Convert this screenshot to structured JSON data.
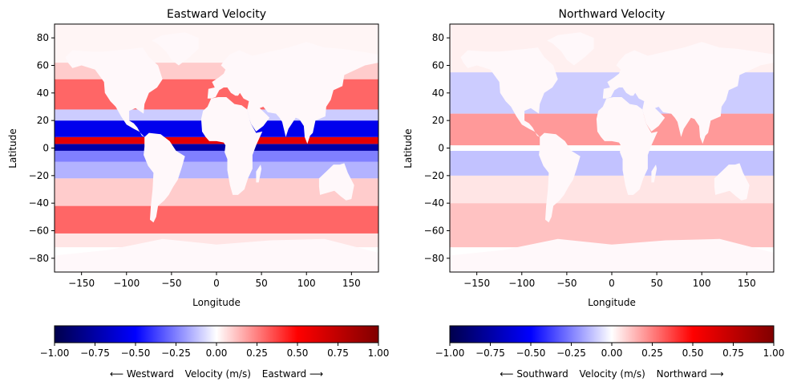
{
  "chart_data": [
    {
      "type": "heatmap",
      "title": "Eastward Velocity",
      "xlabel": "Longitude",
      "ylabel": "Latitude",
      "xlim": [
        -180,
        180
      ],
      "ylim": [
        -90,
        90
      ],
      "xticks": [
        -150,
        -100,
        -50,
        0,
        50,
        100,
        150
      ],
      "yticks": [
        -80,
        -60,
        -40,
        -20,
        0,
        20,
        40,
        60,
        80
      ],
      "xtick_labels": [
        "−150",
        "−100",
        "−50",
        "0",
        "50",
        "100",
        "150"
      ],
      "ytick_labels": [
        "−80",
        "−60",
        "−40",
        "−20",
        "0",
        "20",
        "40",
        "60",
        "80"
      ],
      "colormap": "seismic",
      "value_range": [
        -1.0,
        1.0
      ],
      "colorbar_ticks": [
        -1.0,
        -0.75,
        -0.5,
        -0.25,
        0.0,
        0.25,
        0.5,
        0.75,
        1.0
      ],
      "colorbar_tick_labels": [
        "−1.00",
        "−0.75",
        "−0.50",
        "−0.25",
        "0.00",
        "0.25",
        "0.50",
        "0.75",
        "1.00"
      ],
      "colorbar_label": {
        "left": "⟵  Westward",
        "middle": "Velocity (m/s)",
        "right": "Eastward  ⟶"
      },
      "zonal_bands": [
        {
          "lat": [
            -90,
            -72
          ],
          "value": 0.0
        },
        {
          "lat": [
            -72,
            -62
          ],
          "value": 0.05
        },
        {
          "lat": [
            -62,
            -42
          ],
          "value": 0.3
        },
        {
          "lat": [
            -42,
            -22
          ],
          "value": 0.1
        },
        {
          "lat": [
            -22,
            -10
          ],
          "value": -0.15
        },
        {
          "lat": [
            -10,
            -2
          ],
          "value": -0.25
        },
        {
          "lat": [
            -2,
            3
          ],
          "value": -0.75
        },
        {
          "lat": [
            3,
            8
          ],
          "value": 0.6
        },
        {
          "lat": [
            8,
            20
          ],
          "value": -0.55
        },
        {
          "lat": [
            20,
            28
          ],
          "value": -0.1
        },
        {
          "lat": [
            28,
            50
          ],
          "value": 0.3
        },
        {
          "lat": [
            50,
            62
          ],
          "value": 0.1
        },
        {
          "lat": [
            62,
            90
          ],
          "value": 0.02
        }
      ]
    },
    {
      "type": "heatmap",
      "title": "Northward Velocity",
      "xlabel": "Longitude",
      "ylabel": "Latitude",
      "xlim": [
        -180,
        180
      ],
      "ylim": [
        -90,
        90
      ],
      "xticks": [
        -150,
        -100,
        -50,
        0,
        50,
        100,
        150
      ],
      "yticks": [
        -80,
        -60,
        -40,
        -20,
        0,
        20,
        40,
        60,
        80
      ],
      "xtick_labels": [
        "−150",
        "−100",
        "−50",
        "0",
        "50",
        "100",
        "150"
      ],
      "ytick_labels": [
        "−80",
        "−60",
        "−40",
        "−20",
        "0",
        "20",
        "40",
        "60",
        "80"
      ],
      "colormap": "seismic",
      "value_range": [
        -1.0,
        1.0
      ],
      "colorbar_ticks": [
        -1.0,
        -0.75,
        -0.5,
        -0.25,
        0.0,
        0.25,
        0.5,
        0.75,
        1.0
      ],
      "colorbar_tick_labels": [
        "−1.00",
        "−0.75",
        "−0.50",
        "−0.25",
        "0.00",
        "0.25",
        "0.50",
        "0.75",
        "1.00"
      ],
      "colorbar_label": {
        "left": "⟵  Southward",
        "middle": "Velocity (m/s)",
        "right": "Northward  ⟶"
      },
      "zonal_bands": [
        {
          "lat": [
            -90,
            -72
          ],
          "value": 0.0
        },
        {
          "lat": [
            -72,
            -40
          ],
          "value": 0.12
        },
        {
          "lat": [
            -40,
            -20
          ],
          "value": 0.05
        },
        {
          "lat": [
            -20,
            -2
          ],
          "value": -0.12
        },
        {
          "lat": [
            -2,
            2
          ],
          "value": 0.0
        },
        {
          "lat": [
            2,
            25
          ],
          "value": 0.2
        },
        {
          "lat": [
            25,
            55
          ],
          "value": -0.1
        },
        {
          "lat": [
            55,
            90
          ],
          "value": 0.03
        }
      ]
    }
  ],
  "land": [
    {
      "name": "North America",
      "points": [
        [
          -168,
          66
        ],
        [
          -160,
          71
        ],
        [
          -140,
          70
        ],
        [
          -125,
          70
        ],
        [
          -95,
          72
        ],
        [
          -82,
          73
        ],
        [
          -75,
          66
        ],
        [
          -65,
          60
        ],
        [
          -60,
          50
        ],
        [
          -66,
          44
        ],
        [
          -75,
          40
        ],
        [
          -80,
          32
        ],
        [
          -81,
          25
        ],
        [
          -90,
          29
        ],
        [
          -97,
          27
        ],
        [
          -97,
          20
        ],
        [
          -92,
          18
        ],
        [
          -88,
          15
        ],
        [
          -83,
          9
        ],
        [
          -80,
          8
        ],
        [
          -86,
          12
        ],
        [
          -92,
          14
        ],
        [
          -100,
          17
        ],
        [
          -106,
          23
        ],
        [
          -112,
          30
        ],
        [
          -118,
          34
        ],
        [
          -124,
          40
        ],
        [
          -125,
          48
        ],
        [
          -135,
          57
        ],
        [
          -150,
          60
        ],
        [
          -160,
          58
        ],
        [
          -165,
          62
        ]
      ]
    },
    {
      "name": "Greenland",
      "points": [
        [
          -72,
          78
        ],
        [
          -60,
          82
        ],
        [
          -35,
          84
        ],
        [
          -20,
          80
        ],
        [
          -20,
          72
        ],
        [
          -30,
          66
        ],
        [
          -42,
          60
        ],
        [
          -50,
          64
        ],
        [
          -56,
          70
        ],
        [
          -66,
          76
        ]
      ]
    },
    {
      "name": "South America",
      "points": [
        [
          -80,
          8
        ],
        [
          -75,
          11
        ],
        [
          -62,
          10
        ],
        [
          -52,
          5
        ],
        [
          -45,
          -2
        ],
        [
          -35,
          -6
        ],
        [
          -39,
          -15
        ],
        [
          -43,
          -23
        ],
        [
          -48,
          -28
        ],
        [
          -53,
          -34
        ],
        [
          -58,
          -38
        ],
        [
          -65,
          -42
        ],
        [
          -67,
          -50
        ],
        [
          -70,
          -54
        ],
        [
          -74,
          -52
        ],
        [
          -73,
          -42
        ],
        [
          -71,
          -30
        ],
        [
          -70,
          -18
        ],
        [
          -76,
          -13
        ],
        [
          -81,
          -5
        ],
        [
          -80,
          1
        ]
      ]
    },
    {
      "name": "Eurasia",
      "points": [
        [
          -10,
          36
        ],
        [
          -9,
          43
        ],
        [
          -2,
          44
        ],
        [
          -5,
          48
        ],
        [
          2,
          51
        ],
        [
          8,
          54
        ],
        [
          10,
          57
        ],
        [
          5,
          60
        ],
        [
          8,
          63
        ],
        [
          15,
          68
        ],
        [
          25,
          71
        ],
        [
          40,
          67
        ],
        [
          60,
          70
        ],
        [
          80,
          73
        ],
        [
          100,
          77
        ],
        [
          120,
          73
        ],
        [
          140,
          72
        ],
        [
          160,
          70
        ],
        [
          180,
          68
        ],
        [
          180,
          62
        ],
        [
          165,
          60
        ],
        [
          155,
          57
        ],
        [
          142,
          53
        ],
        [
          140,
          45
        ],
        [
          130,
          42
        ],
        [
          127,
          35
        ],
        [
          122,
          30
        ],
        [
          121,
          23
        ],
        [
          110,
          20
        ],
        [
          107,
          11
        ],
        [
          104,
          9
        ],
        [
          101,
          3
        ],
        [
          98,
          8
        ],
        [
          97,
          16
        ],
        [
          92,
          21
        ],
        [
          88,
          22
        ],
        [
          80,
          14
        ],
        [
          77,
          8
        ],
        [
          73,
          19
        ],
        [
          70,
          22
        ],
        [
          66,
          25
        ],
        [
          57,
          26
        ],
        [
          52,
          30
        ],
        [
          48,
          29
        ],
        [
          56,
          24
        ],
        [
          59,
          22
        ],
        [
          52,
          16
        ],
        [
          44,
          12
        ],
        [
          38,
          18
        ],
        [
          34,
          28
        ],
        [
          36,
          34
        ],
        [
          30,
          36
        ],
        [
          26,
          40
        ],
        [
          24,
          38
        ],
        [
          21,
          38
        ],
        [
          16,
          40
        ],
        [
          12,
          44
        ],
        [
          8,
          44
        ],
        [
          3,
          42
        ],
        [
          -1,
          37
        ],
        [
          -6,
          36
        ]
      ]
    },
    {
      "name": "Africa",
      "points": [
        [
          -17,
          21
        ],
        [
          -16,
          12
        ],
        [
          -12,
          8
        ],
        [
          -8,
          5
        ],
        [
          0,
          5
        ],
        [
          8,
          4
        ],
        [
          10,
          2
        ],
        [
          9,
          -3
        ],
        [
          12,
          -8
        ],
        [
          12,
          -16
        ],
        [
          15,
          -27
        ],
        [
          18,
          -34
        ],
        [
          24,
          -34
        ],
        [
          31,
          -30
        ],
        [
          35,
          -22
        ],
        [
          40,
          -15
        ],
        [
          40,
          -5
        ],
        [
          44,
          2
        ],
        [
          51,
          12
        ],
        [
          44,
          11
        ],
        [
          38,
          18
        ],
        [
          34,
          28
        ],
        [
          28,
          31
        ],
        [
          20,
          32
        ],
        [
          11,
          37
        ],
        [
          2,
          37
        ],
        [
          -6,
          36
        ],
        [
          -10,
          30
        ],
        [
          -15,
          27
        ]
      ]
    },
    {
      "name": "Madagascar",
      "points": [
        [
          44,
          -25
        ],
        [
          47,
          -25
        ],
        [
          50,
          -15
        ],
        [
          49,
          -12
        ],
        [
          44,
          -17
        ]
      ]
    },
    {
      "name": "Australia",
      "points": [
        [
          114,
          -22
        ],
        [
          122,
          -17
        ],
        [
          130,
          -12
        ],
        [
          137,
          -12
        ],
        [
          142,
          -11
        ],
        [
          146,
          -18
        ],
        [
          153,
          -27
        ],
        [
          150,
          -37
        ],
        [
          144,
          -38
        ],
        [
          138,
          -35
        ],
        [
          131,
          -31
        ],
        [
          115,
          -34
        ],
        [
          114,
          -28
        ]
      ]
    },
    {
      "name": "Antarctica",
      "points": [
        [
          -180,
          -78
        ],
        [
          -120,
          -74
        ],
        [
          -60,
          -66
        ],
        [
          0,
          -70
        ],
        [
          60,
          -67
        ],
        [
          120,
          -66
        ],
        [
          180,
          -76
        ],
        [
          180,
          -90
        ],
        [
          -180,
          -90
        ]
      ]
    }
  ]
}
